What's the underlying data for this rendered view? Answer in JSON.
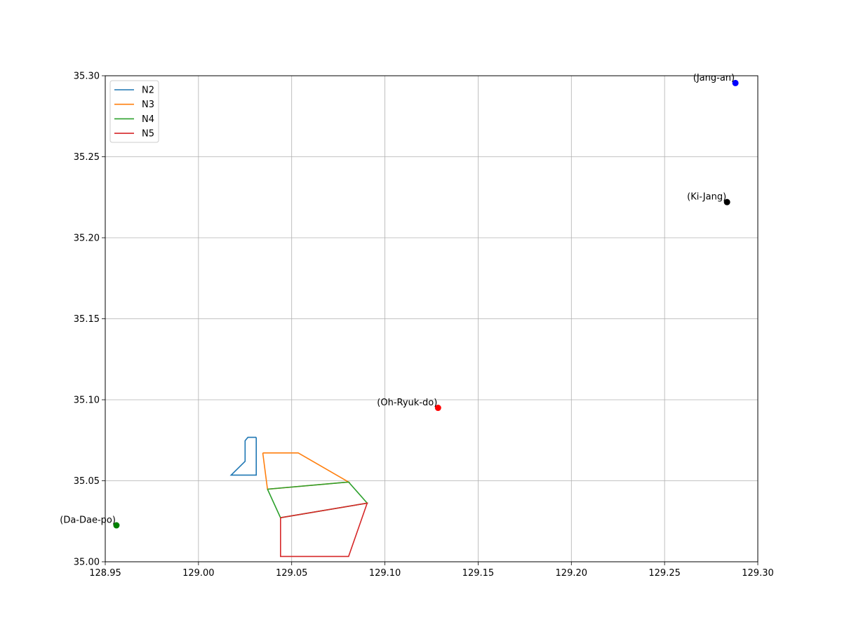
{
  "chart_data": {
    "type": "line",
    "title": "",
    "xlabel": "",
    "ylabel": "",
    "xlim": [
      128.95,
      129.3
    ],
    "ylim": [
      35.0,
      35.3
    ],
    "grid": true,
    "legend_position": "upper-left",
    "x_ticks": [
      128.95,
      129.0,
      129.05,
      129.1,
      129.15,
      129.2,
      129.25,
      129.3
    ],
    "x_tick_labels": [
      "128.95",
      "129.00",
      "129.05",
      "129.10",
      "129.15",
      "129.20",
      "129.25",
      "129.30"
    ],
    "y_ticks": [
      35.0,
      35.05,
      35.1,
      35.15,
      35.2,
      35.25,
      35.3
    ],
    "y_tick_labels": [
      "35.00",
      "35.05",
      "35.10",
      "35.15",
      "35.20",
      "35.25",
      "35.30"
    ],
    "series": [
      {
        "name": "N2",
        "color": "#1f77b4",
        "points": [
          [
            129.031,
            35.0768
          ],
          [
            129.0265,
            35.0768
          ],
          [
            129.025,
            35.0747
          ],
          [
            129.025,
            35.062
          ],
          [
            129.0175,
            35.0535
          ],
          [
            129.031,
            35.0535
          ],
          [
            129.031,
            35.0768
          ]
        ]
      },
      {
        "name": "N3",
        "color": "#ff7f0e",
        "points": [
          [
            129.0345,
            35.0672
          ],
          [
            129.0535,
            35.0672
          ],
          [
            129.0805,
            35.0492
          ],
          [
            129.037,
            35.0448
          ],
          [
            129.0345,
            35.0672
          ]
        ]
      },
      {
        "name": "N4",
        "color": "#2ca02c",
        "points": [
          [
            129.037,
            35.0448
          ],
          [
            129.0805,
            35.0492
          ],
          [
            129.0905,
            35.0362
          ],
          [
            129.044,
            35.0272
          ],
          [
            129.037,
            35.0448
          ]
        ]
      },
      {
        "name": "N5",
        "color": "#d62728",
        "points": [
          [
            129.044,
            35.0272
          ],
          [
            129.0905,
            35.0362
          ],
          [
            129.0805,
            35.0033
          ],
          [
            129.044,
            35.0033
          ],
          [
            129.044,
            35.0272
          ]
        ]
      }
    ],
    "points": [
      {
        "label": "(Jang-an)",
        "x": 129.288,
        "y": 35.2955,
        "color": "#0000ff"
      },
      {
        "label": "(Ki-Jang)",
        "x": 129.2835,
        "y": 35.222,
        "color": "#000000"
      },
      {
        "label": "(Oh-Ryuk-do)",
        "x": 129.1285,
        "y": 35.095,
        "color": "#ff0000"
      },
      {
        "label": "(Da-Dae-po)",
        "x": 128.956,
        "y": 35.0225,
        "color": "#008000"
      }
    ]
  }
}
